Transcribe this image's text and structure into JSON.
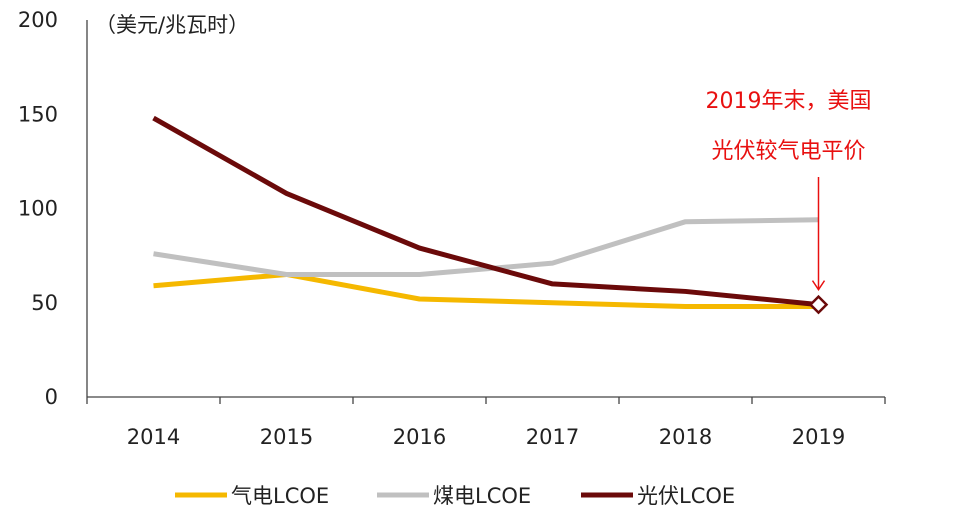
{
  "chart_data": {
    "type": "line",
    "title": "",
    "unit_label": "（美元/兆瓦时）",
    "xlabel": "",
    "ylabel": "",
    "categories": [
      "2014",
      "2015",
      "2016",
      "2017",
      "2018",
      "2019"
    ],
    "ylim": [
      0,
      200
    ],
    "yticks": [
      0,
      50,
      100,
      150,
      200
    ],
    "grid": false,
    "series": [
      {
        "name": "气电LCOE",
        "color": "#f5b800",
        "values": [
          59,
          65,
          52,
          50,
          48,
          48
        ]
      },
      {
        "name": "煤电LCOE",
        "color": "#c0c0c0",
        "values": [
          76,
          65,
          65,
          71,
          93,
          94
        ]
      },
      {
        "name": "光伏LCOE",
        "color": "#6b0a0a",
        "values": [
          148,
          108,
          79,
          60,
          56,
          49
        ]
      }
    ],
    "annotation": {
      "lines": [
        "2019年末，美国",
        "光伏较气电平价"
      ],
      "color": "#e81010",
      "target_category": "2019",
      "target_value": 49
    },
    "legend_position": "bottom"
  }
}
